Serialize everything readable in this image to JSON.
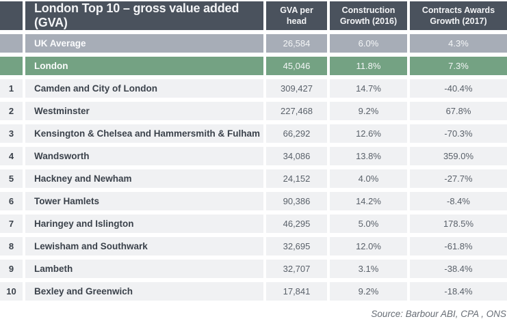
{
  "chart_data": {
    "type": "table",
    "title": "London Top 10 – gross value added (GVA)",
    "column_headers": [
      "GVA per\nhead",
      "Construction\nGrowth (2016)",
      "Contracts Awards\nGrowth (2017)"
    ],
    "summary_rows": [
      {
        "name": "UK Average",
        "gva": "26,584",
        "growth2016": "6.0%",
        "growth2017": "4.3%"
      },
      {
        "name": "London",
        "gva": "45,046",
        "growth2016": "11.8%",
        "growth2017": "7.3%"
      }
    ],
    "rows": [
      {
        "rank": "1",
        "name": "Camden and City of London",
        "gva": "309,427",
        "growth2016": "14.7%",
        "growth2017": "-40.4%"
      },
      {
        "rank": "2",
        "name": "Westminster",
        "gva": "227,468",
        "growth2016": "9.2%",
        "growth2017": "67.8%"
      },
      {
        "rank": "3",
        "name": "Kensington & Chelsea and Hammersmith & Fulham",
        "gva": "66,292",
        "growth2016": "12.6%",
        "growth2017": "-70.3%"
      },
      {
        "rank": "4",
        "name": "Wandsworth",
        "gva": "34,086",
        "growth2016": "13.8%",
        "growth2017": "359.0%"
      },
      {
        "rank": "5",
        "name": "Hackney and Newham",
        "gva": "24,152",
        "growth2016": "4.0%",
        "growth2017": "-27.7%"
      },
      {
        "rank": "6",
        "name": "Tower Hamlets",
        "gva": "90,386",
        "growth2016": "14.2%",
        "growth2017": "-8.4%"
      },
      {
        "rank": "7",
        "name": "Haringey and Islington",
        "gva": "46,295",
        "growth2016": "5.0%",
        "growth2017": "178.5%"
      },
      {
        "rank": "8",
        "name": "Lewisham and Southwark",
        "gva": "32,695",
        "growth2016": "12.0%",
        "growth2017": "-61.8%"
      },
      {
        "rank": "9",
        "name": "Lambeth",
        "gva": "32,707",
        "growth2016": "3.1%",
        "growth2017": "-38.4%"
      },
      {
        "rank": "10",
        "name": "Bexley and Greenwich",
        "gva": "17,841",
        "growth2016": "9.2%",
        "growth2017": "-18.4%"
      }
    ],
    "source": "Source: Barbour ABI, CPA , ONS",
    "colors": {
      "header_bg": "#4a525d",
      "uk_average_row_bg": "#a7adb7",
      "london_row_bg": "#74a283",
      "data_row_bg": "#f0f1f3"
    }
  }
}
